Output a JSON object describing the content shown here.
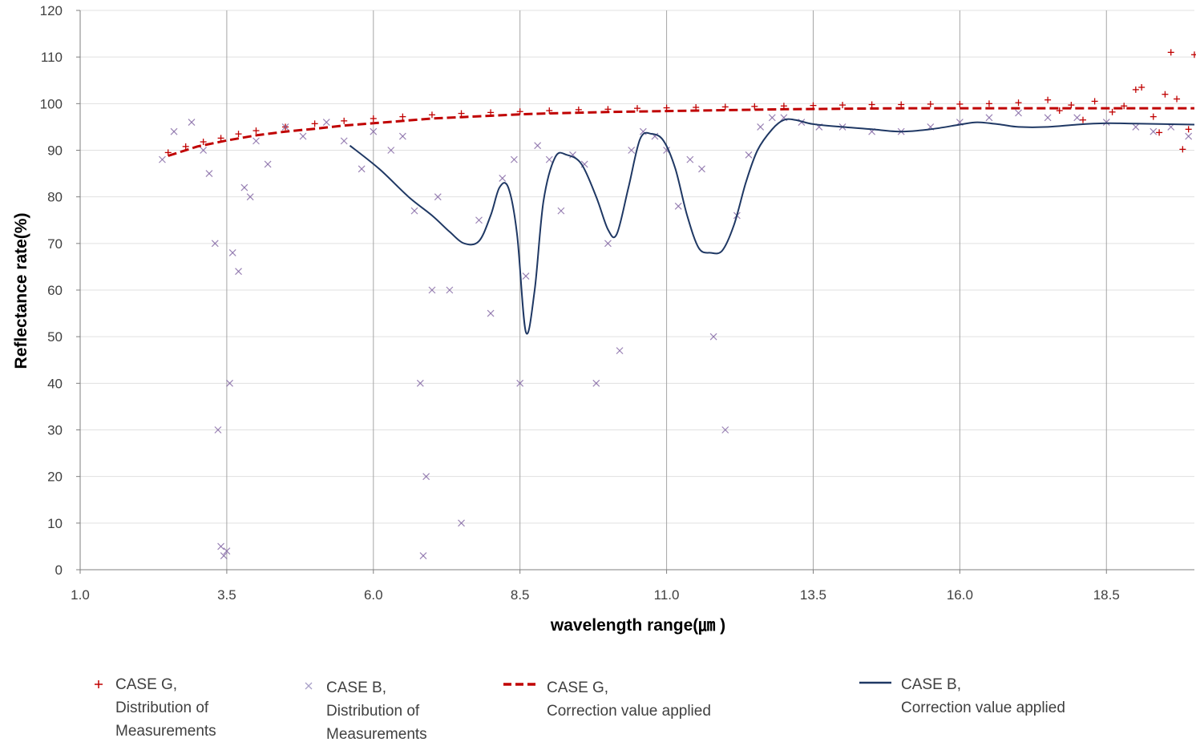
{
  "chart_data": {
    "type": "scatter",
    "title": "",
    "xlabel": "wavelength range(㎛ )",
    "ylabel": "Reflectance rate(%)",
    "xlim": [
      1.0,
      20.0
    ],
    "ylim": [
      0,
      120
    ],
    "xticks": [
      1.0,
      3.5,
      6.0,
      8.5,
      11.0,
      13.5,
      16.0,
      18.5
    ],
    "xtick_labels": [
      "1.0",
      "3.5",
      "6.0",
      "8.5",
      "11.0",
      "13.5",
      "16.0",
      "18.5"
    ],
    "yticks": [
      0,
      10,
      20,
      30,
      40,
      50,
      60,
      70,
      80,
      90,
      100,
      110,
      120
    ],
    "ytick_labels": [
      "0",
      "10",
      "20",
      "30",
      "40",
      "50",
      "60",
      "70",
      "80",
      "90",
      "100",
      "110",
      "120"
    ],
    "grid": "vertical",
    "series": [
      {
        "name": "CASE G, Distribution of Measurements",
        "kind": "scatter",
        "marker": "+",
        "color": "#C00000",
        "x": [
          2.5,
          2.8,
          3.1,
          3.4,
          3.7,
          4.0,
          4.5,
          5.0,
          5.5,
          6.0,
          6.5,
          7.0,
          7.5,
          8.0,
          8.5,
          9.0,
          9.5,
          10.0,
          10.5,
          11.0,
          11.5,
          12.0,
          12.5,
          13.0,
          13.5,
          14.0,
          14.5,
          15.0,
          15.5,
          16.0,
          16.5,
          17.0,
          17.5,
          17.7,
          17.9,
          18.1,
          18.3,
          18.6,
          18.8,
          19.0,
          19.1,
          19.3,
          19.4,
          19.5,
          19.6,
          19.7,
          19.8,
          19.9,
          20.0
        ],
        "y": [
          89.5,
          90.8,
          91.8,
          92.6,
          93.5,
          94.2,
          95.0,
          95.7,
          96.3,
          96.8,
          97.2,
          97.6,
          97.9,
          98.1,
          98.3,
          98.5,
          98.7,
          98.8,
          99.0,
          99.1,
          99.2,
          99.3,
          99.4,
          99.5,
          99.6,
          99.7,
          99.8,
          99.8,
          99.9,
          99.9,
          100.0,
          100.2,
          100.8,
          98.5,
          99.7,
          96.5,
          100.5,
          98.2,
          99.5,
          103.0,
          103.5,
          97.2,
          93.8,
          102.0,
          111.0,
          101.0,
          90.2,
          94.5,
          110.5
        ]
      },
      {
        "name": "CASE B, Distribution of Measurements",
        "kind": "scatter",
        "marker": "x",
        "color": "#8064A2",
        "x": [
          2.4,
          2.6,
          2.9,
          3.1,
          3.2,
          3.3,
          3.35,
          3.4,
          3.45,
          3.5,
          3.55,
          3.6,
          3.7,
          3.8,
          3.9,
          4.0,
          4.2,
          4.5,
          4.8,
          5.2,
          5.5,
          5.8,
          6.0,
          6.3,
          6.5,
          6.7,
          6.8,
          6.85,
          6.9,
          7.0,
          7.1,
          7.3,
          7.5,
          7.8,
          8.0,
          8.2,
          8.4,
          8.5,
          8.6,
          8.8,
          9.0,
          9.2,
          9.4,
          9.6,
          9.8,
          10.0,
          10.2,
          10.4,
          10.6,
          10.8,
          11.0,
          11.2,
          11.4,
          11.6,
          11.8,
          12.0,
          12.2,
          12.4,
          12.6,
          12.8,
          13.0,
          13.3,
          13.6,
          14.0,
          14.5,
          15.0,
          15.5,
          16.0,
          16.5,
          17.0,
          17.5,
          18.0,
          18.5,
          19.0,
          19.3,
          19.6,
          19.9
        ],
        "y": [
          88,
          94,
          96,
          90,
          85,
          70,
          30,
          5,
          3,
          4,
          40,
          68,
          64,
          82,
          80,
          92,
          87,
          95,
          93,
          96,
          92,
          86,
          94,
          90,
          93,
          77,
          40,
          3,
          20,
          60,
          80,
          60,
          10,
          75,
          55,
          84,
          88,
          40,
          63,
          91,
          88,
          77,
          89,
          87,
          40,
          70,
          47,
          90,
          94,
          93,
          90,
          78,
          88,
          86,
          50,
          30,
          76,
          89,
          95,
          97,
          97,
          96,
          95,
          95,
          94,
          94,
          95,
          96,
          97,
          98,
          97,
          97,
          96,
          95,
          94,
          95,
          93
        ]
      },
      {
        "name": "CASE G, Correction value applied",
        "kind": "line",
        "dash": "dashed",
        "color": "#C00000",
        "x": [
          2.5,
          3.0,
          3.5,
          4.0,
          4.5,
          5.0,
          5.5,
          6.0,
          6.5,
          7.0,
          7.5,
          8.0,
          8.5,
          9.0,
          10.0,
          11.0,
          12.0,
          13.0,
          14.0,
          15.0,
          16.0,
          17.0,
          18.0,
          19.0,
          20.0
        ],
        "y": [
          88.8,
          90.8,
          92.1,
          93.2,
          94.0,
          94.6,
          95.3,
          95.8,
          96.3,
          96.8,
          97.1,
          97.4,
          97.7,
          97.9,
          98.2,
          98.4,
          98.6,
          98.8,
          98.9,
          99.0,
          99.0,
          99.0,
          99.0,
          99.0,
          99.0
        ]
      },
      {
        "name": "CASE B, Correction value applied",
        "kind": "line",
        "dash": "solid",
        "color": "#1F3864",
        "x": [
          5.6,
          6.1,
          6.6,
          7.0,
          7.3,
          7.55,
          7.8,
          8.0,
          8.15,
          8.3,
          8.45,
          8.6,
          8.75,
          8.9,
          9.1,
          9.3,
          9.55,
          9.8,
          10.0,
          10.15,
          10.35,
          10.55,
          10.75,
          10.95,
          11.15,
          11.35,
          11.55,
          11.75,
          11.95,
          12.15,
          12.35,
          12.55,
          12.8,
          13.0,
          13.2,
          13.5,
          14.0,
          14.5,
          15.0,
          15.5,
          16.0,
          16.3,
          16.7,
          17.0,
          17.5,
          18.0,
          18.5,
          19.0,
          19.5,
          20.0
        ],
        "y": [
          91,
          86,
          80,
          76,
          72.5,
          70,
          70.5,
          76,
          82,
          82,
          72,
          51,
          60,
          79,
          88.5,
          89,
          87,
          80,
          73,
          72,
          82,
          92.5,
          93.5,
          92,
          86,
          76,
          69,
          68,
          68.5,
          74,
          83,
          90,
          94.5,
          96.5,
          96.5,
          95.6,
          95,
          94.5,
          94,
          94.5,
          95.5,
          96,
          95.5,
          95,
          95,
          95.5,
          95.8,
          95.7,
          95.6,
          95.5
        ]
      }
    ]
  },
  "legend": {
    "items": [
      {
        "line1": "CASE G,",
        "line2": "Distribution of",
        "line3": "Measurements"
      },
      {
        "line1": "CASE B,",
        "line2": "Distribution of",
        "line3": "Measurements"
      },
      {
        "line1": "CASE G,",
        "line2": "Correction value applied"
      },
      {
        "line1": "CASE B,",
        "line2": "Correction value applied"
      }
    ]
  },
  "colors": {
    "case_g": "#C00000",
    "case_b_scatter": "#8064A2",
    "case_b_line": "#1F3864",
    "grid": "#A6A6A6",
    "hgrid": "#E0E0E0"
  }
}
